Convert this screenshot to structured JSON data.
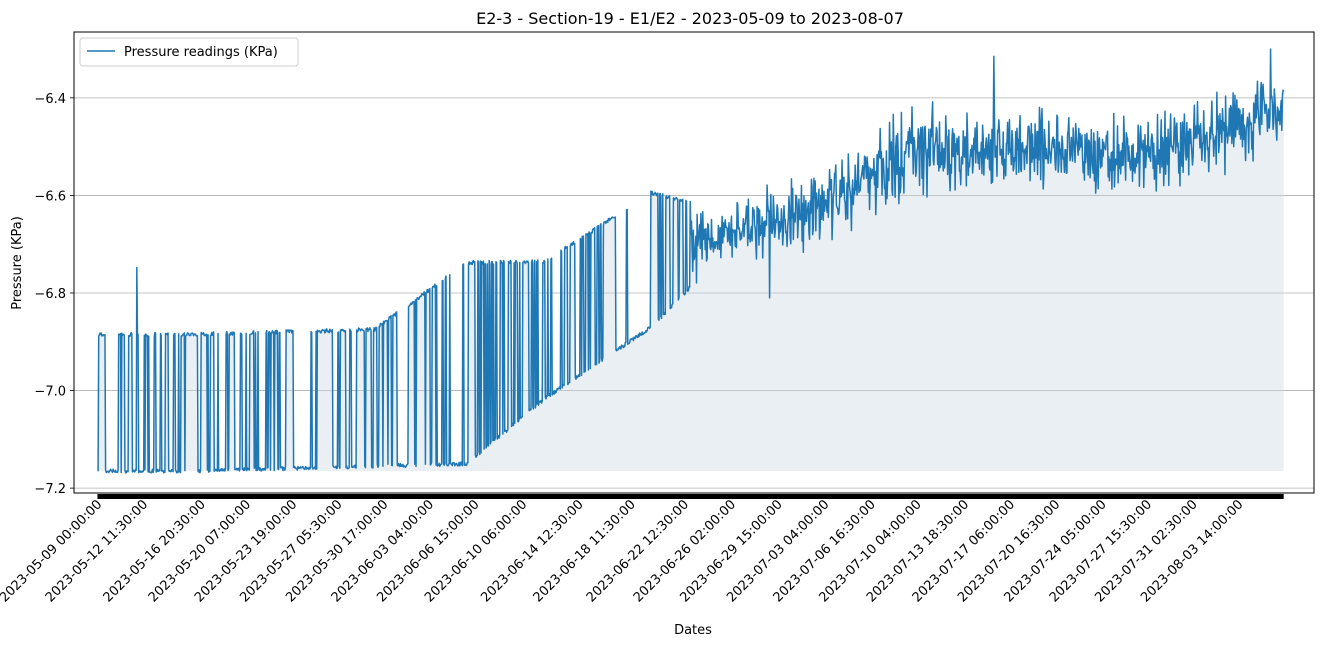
{
  "chart_data": {
    "type": "line",
    "title": "E2-3 - Section-19 - E1/E2 - 2023-05-09 to 2023-08-07",
    "xlabel": "Dates",
    "ylabel": "Pressure (KPa)",
    "ylim": [
      -7.21,
      -6.265
    ],
    "yticks": [
      -7.2,
      -7.0,
      -6.8,
      -6.6,
      -6.4
    ],
    "ytick_labels": [
      "−7.2",
      "−7.0",
      "−6.8",
      "−6.6",
      "−6.4"
    ],
    "xlim_days": [
      -1.78,
      92.3
    ],
    "xticks": [
      {
        "label": "2023-05-09 00:00:00",
        "day": 0.0
      },
      {
        "label": "2023-05-12 11:30:00",
        "day": 3.479
      },
      {
        "label": "2023-05-16 20:30:00",
        "day": 7.854
      },
      {
        "label": "2023-05-20 07:00:00",
        "day": 11.292
      },
      {
        "label": "2023-05-23 19:00:00",
        "day": 14.792
      },
      {
        "label": "2023-05-27 05:30:00",
        "day": 18.229
      },
      {
        "label": "2023-05-30 17:00:00",
        "day": 21.708
      },
      {
        "label": "2023-06-03 04:00:00",
        "day": 25.167
      },
      {
        "label": "2023-06-06 15:00:00",
        "day": 28.625
      },
      {
        "label": "2023-06-10 06:00:00",
        "day": 32.25
      },
      {
        "label": "2023-06-14 12:30:00",
        "day": 36.521
      },
      {
        "label": "2023-06-18 11:30:00",
        "day": 40.479
      },
      {
        "label": "2023-06-22 12:30:00",
        "day": 44.521
      },
      {
        "label": "2023-06-26 02:00:00",
        "day": 48.083
      },
      {
        "label": "2023-06-29 15:00:00",
        "day": 51.625
      },
      {
        "label": "2023-07-03 04:00:00",
        "day": 55.167
      },
      {
        "label": "2023-07-06 16:30:00",
        "day": 58.688
      },
      {
        "label": "2023-07-10 04:00:00",
        "day": 62.167
      },
      {
        "label": "2023-07-13 18:30:00",
        "day": 65.771
      },
      {
        "label": "2023-07-17 06:00:00",
        "day": 69.25
      },
      {
        "label": "2023-07-20 16:30:00",
        "day": 72.688
      },
      {
        "label": "2023-07-24 05:00:00",
        "day": 76.208
      },
      {
        "label": "2023-07-27 15:30:00",
        "day": 79.646
      },
      {
        "label": "2023-07-31 02:30:00",
        "day": 83.104
      },
      {
        "label": "2023-08-03 14:00:00",
        "day": 86.583
      }
    ],
    "grid": "y-axis only",
    "legend_placement": "top-left",
    "series": [
      {
        "name": "Pressure readings (KPa)",
        "color": "#1f77b4",
        "fill_color": "#c8d8e0",
        "baseline": -7.165,
        "x_start": "2023-05-09 00:00:00",
        "x_end": "2023-08-07 00:00:00",
        "sampling": "30-minute readings",
        "profile": [
          {
            "date": "2023-05-09",
            "low": -7.165,
            "high": -6.885
          },
          {
            "date": "2023-05-16",
            "low": -7.165,
            "high": -6.885
          },
          {
            "date": "2023-05-23",
            "low": -7.16,
            "high": -6.88
          },
          {
            "date": "2023-05-30",
            "low": -7.155,
            "high": -6.875
          },
          {
            "date": "2023-06-06",
            "low": -7.15,
            "high": -6.738
          },
          {
            "date": "2023-06-12",
            "low": -7.015,
            "high": -6.735
          },
          {
            "date": "2023-06-20",
            "low": -6.87,
            "high": -6.595
          },
          {
            "date": "2023-06-24",
            "low": -6.76,
            "high": -6.62
          },
          {
            "date": "2023-07-03",
            "low": -6.7,
            "high": -6.55
          },
          {
            "date": "2023-07-10",
            "low": -6.6,
            "high": -6.42
          },
          {
            "date": "2023-07-20",
            "low": -6.58,
            "high": -6.42
          },
          {
            "date": "2023-07-27",
            "low": -6.6,
            "high": -6.45
          },
          {
            "date": "2023-08-07",
            "low": -6.5,
            "high": -6.35
          }
        ],
        "notable_values": [
          {
            "date": "2023-05-12",
            "value": -6.748
          },
          {
            "date": "2023-06-29",
            "value": -6.81
          },
          {
            "date": "2023-07-16",
            "value": -6.315
          },
          {
            "date": "2023-08-06",
            "value": -6.3
          }
        ]
      }
    ]
  }
}
